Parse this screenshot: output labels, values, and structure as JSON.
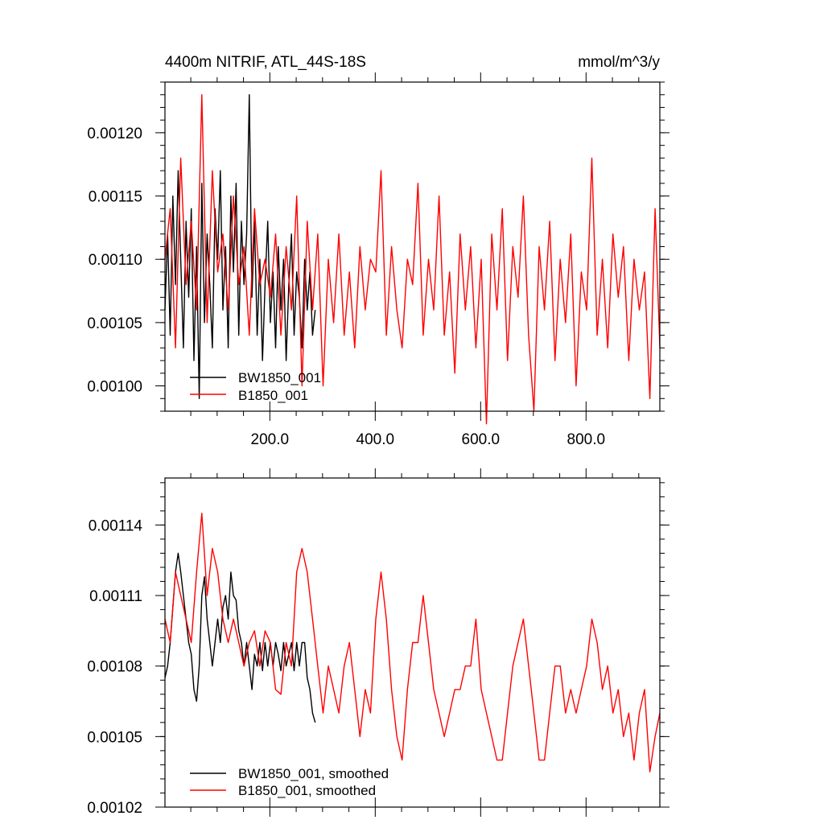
{
  "chart_data": [
    {
      "type": "line",
      "title": "4400m NITRIF, ATL_44S-18S",
      "units": "mmol/m^3/y",
      "xlim": [
        1,
        940
      ],
      "ylim": [
        0.00098,
        0.00124
      ],
      "xticks": [
        200,
        400,
        600,
        800
      ],
      "xtick_labels": [
        "200.0",
        "400.0",
        "600.0",
        "800.0"
      ],
      "yticks": [
        0.001,
        0.00105,
        0.0011,
        0.00115,
        0.0012
      ],
      "ytick_labels": [
        "0.00100",
        "0.00105",
        "0.00110",
        "0.00115",
        "0.00120"
      ],
      "legend_position": "bottom-left",
      "series": [
        {
          "name": "BW1850_001",
          "color": "#000000",
          "x": [
            1,
            6,
            11,
            16,
            21,
            26,
            31,
            36,
            41,
            46,
            51,
            56,
            61,
            66,
            71,
            76,
            81,
            86,
            91,
            96,
            101,
            106,
            111,
            116,
            121,
            126,
            131,
            136,
            141,
            146,
            151,
            156,
            161,
            166,
            171,
            176,
            181,
            186,
            191,
            196,
            201,
            206,
            211,
            216,
            221,
            226,
            231,
            236,
            241,
            246,
            251,
            256,
            261,
            266,
            271,
            276,
            281,
            286
          ],
          "values": [
            0.00106,
            0.00112,
            0.00104,
            0.00115,
            0.00108,
            0.00117,
            0.0011,
            0.00103,
            0.00113,
            0.00107,
            0.00114,
            0.00102,
            0.00111,
            0.00099,
            0.00116,
            0.00105,
            0.00112,
            0.00108,
            0.00103,
            0.00114,
            0.0011,
            0.00117,
            0.00106,
            0.00111,
            0.00103,
            0.00115,
            0.00109,
            0.00116,
            0.00104,
            0.00113,
            0.00108,
            0.00112,
            0.00123,
            0.00107,
            0.00113,
            0.00104,
            0.0011,
            0.00102,
            0.00108,
            0.00113,
            0.00105,
            0.00109,
            0.00103,
            0.00111,
            0.00106,
            0.0011,
            0.00102,
            0.00108,
            0.00112,
            0.00104,
            0.00109,
            0.00107,
            0.00103,
            0.0011,
            0.00106,
            0.00109,
            0.00104,
            0.00106
          ]
        },
        {
          "name": "B1850_001",
          "color": "#ff0000",
          "x": [
            1,
            11,
            21,
            31,
            41,
            51,
            61,
            71,
            81,
            91,
            101,
            111,
            121,
            131,
            141,
            151,
            161,
            171,
            181,
            191,
            201,
            211,
            221,
            231,
            241,
            251,
            261,
            271,
            281,
            291,
            301,
            311,
            321,
            331,
            341,
            351,
            361,
            371,
            381,
            391,
            401,
            411,
            421,
            431,
            441,
            451,
            461,
            471,
            481,
            491,
            501,
            511,
            521,
            531,
            541,
            551,
            561,
            571,
            581,
            591,
            601,
            611,
            621,
            631,
            641,
            651,
            661,
            671,
            681,
            691,
            701,
            711,
            721,
            731,
            741,
            751,
            761,
            771,
            781,
            791,
            801,
            811,
            821,
            831,
            841,
            851,
            861,
            871,
            881,
            891,
            901,
            911,
            921,
            931,
            940
          ],
          "values": [
            0.0011,
            0.00114,
            0.00103,
            0.00118,
            0.00108,
            0.00113,
            0.00106,
            0.00123,
            0.00105,
            0.00117,
            0.00109,
            0.00112,
            0.00106,
            0.00115,
            0.00108,
            0.00111,
            0.00104,
            0.00114,
            0.00108,
            0.0011,
            0.00107,
            0.00112,
            0.00104,
            0.00111,
            0.00106,
            0.00115,
            0.001,
            0.00113,
            0.00106,
            0.00112,
            0.001,
            0.0011,
            0.00105,
            0.00112,
            0.00104,
            0.00109,
            0.00103,
            0.00111,
            0.00106,
            0.0011,
            0.00109,
            0.00117,
            0.00104,
            0.00111,
            0.00106,
            0.00103,
            0.0011,
            0.00108,
            0.00116,
            0.00104,
            0.0011,
            0.00106,
            0.00115,
            0.00104,
            0.00109,
            0.00101,
            0.00112,
            0.00106,
            0.00111,
            0.00103,
            0.0011,
            0.00097,
            0.00112,
            0.00106,
            0.00114,
            0.00102,
            0.00111,
            0.00107,
            0.00115,
            0.00104,
            0.00098,
            0.00111,
            0.00106,
            0.00113,
            0.00102,
            0.0011,
            0.00105,
            0.00112,
            0.001,
            0.00109,
            0.00106,
            0.00118,
            0.00104,
            0.0011,
            0.00103,
            0.00112,
            0.00107,
            0.00111,
            0.00102,
            0.0011,
            0.00106,
            0.00109,
            0.00099,
            0.00114,
            0.00103
          ]
        }
      ]
    },
    {
      "type": "line",
      "xlim": [
        1,
        940
      ],
      "ylim": [
        0.00102,
        0.00116
      ],
      "xticks": [
        200,
        400,
        600,
        800
      ],
      "yticks": [
        0.00102,
        0.00105,
        0.00108,
        0.00111,
        0.00114
      ],
      "ytick_labels": [
        "0.00102",
        "0.00105",
        "0.00108",
        "0.00111",
        "0.00114"
      ],
      "legend_position": "bottom-left",
      "series": [
        {
          "name": "BW1850_001, smoothed",
          "color": "#000000",
          "x": [
            1,
            6,
            11,
            16,
            21,
            26,
            31,
            36,
            41,
            46,
            51,
            56,
            61,
            66,
            71,
            76,
            81,
            86,
            91,
            96,
            101,
            106,
            111,
            116,
            121,
            126,
            131,
            136,
            141,
            146,
            151,
            156,
            161,
            166,
            171,
            176,
            181,
            186,
            191,
            196,
            201,
            206,
            211,
            216,
            221,
            226,
            231,
            236,
            241,
            246,
            251,
            256,
            261,
            266,
            271,
            276,
            281,
            286
          ],
          "values": [
            0.001075,
            0.00108,
            0.00109,
            0.001105,
            0.00112,
            0.001128,
            0.00112,
            0.00111,
            0.0011,
            0.00109,
            0.001085,
            0.00107,
            0.001065,
            0.00108,
            0.00111,
            0.001118,
            0.0011,
            0.00109,
            0.00108,
            0.00109,
            0.0011,
            0.00109,
            0.001105,
            0.00111,
            0.0011,
            0.00112,
            0.00111,
            0.001108,
            0.001095,
            0.00109,
            0.00108,
            0.00109,
            0.00108,
            0.00107,
            0.001085,
            0.00108,
            0.00109,
            0.001078,
            0.00109,
            0.00108,
            0.00109,
            0.00108,
            0.00109,
            0.001085,
            0.001078,
            0.00109,
            0.00108,
            0.001085,
            0.00109,
            0.001078,
            0.00109,
            0.00108,
            0.00109,
            0.00109,
            0.001075,
            0.00107,
            0.00106,
            0.001056
          ]
        },
        {
          "name": "B1850_001, smoothed",
          "color": "#ff0000",
          "x": [
            1,
            11,
            21,
            31,
            41,
            51,
            61,
            71,
            81,
            91,
            101,
            111,
            121,
            131,
            141,
            151,
            161,
            171,
            181,
            191,
            201,
            211,
            221,
            231,
            241,
            251,
            261,
            271,
            281,
            291,
            301,
            311,
            321,
            331,
            341,
            351,
            361,
            371,
            381,
            391,
            401,
            411,
            421,
            431,
            441,
            451,
            461,
            471,
            481,
            491,
            501,
            511,
            521,
            531,
            541,
            551,
            561,
            571,
            581,
            591,
            601,
            611,
            621,
            631,
            641,
            651,
            661,
            671,
            681,
            691,
            701,
            711,
            721,
            731,
            741,
            751,
            761,
            771,
            781,
            791,
            801,
            811,
            821,
            831,
            841,
            851,
            861,
            871,
            881,
            891,
            901,
            911,
            921,
            931,
            940
          ],
          "values": [
            0.0011,
            0.00109,
            0.00112,
            0.00111,
            0.0011,
            0.00109,
            0.00112,
            0.001145,
            0.00111,
            0.00113,
            0.00112,
            0.0011,
            0.00109,
            0.0011,
            0.00109,
            0.00108,
            0.00109,
            0.001095,
            0.00108,
            0.001095,
            0.00109,
            0.00107,
            0.001068,
            0.00109,
            0.00108,
            0.00112,
            0.00113,
            0.00112,
            0.0011,
            0.00108,
            0.00106,
            0.00108,
            0.00107,
            0.00106,
            0.00108,
            0.00109,
            0.00107,
            0.00105,
            0.00107,
            0.00106,
            0.0011,
            0.00112,
            0.0011,
            0.00107,
            0.00105,
            0.00104,
            0.00107,
            0.00109,
            0.00109,
            0.00111,
            0.00109,
            0.00107,
            0.00106,
            0.00105,
            0.00106,
            0.00107,
            0.00107,
            0.00108,
            0.00108,
            0.0011,
            0.00107,
            0.00106,
            0.00105,
            0.00104,
            0.00104,
            0.00106,
            0.00108,
            0.00109,
            0.0011,
            0.00108,
            0.00106,
            0.00104,
            0.00104,
            0.00106,
            0.00108,
            0.00108,
            0.00106,
            0.00107,
            0.00106,
            0.00107,
            0.00108,
            0.0011,
            0.00109,
            0.00107,
            0.00108,
            0.00106,
            0.00107,
            0.00105,
            0.00106,
            0.00104,
            0.00106,
            0.00107,
            0.001035,
            0.00105,
            0.00106
          ]
        }
      ]
    }
  ]
}
